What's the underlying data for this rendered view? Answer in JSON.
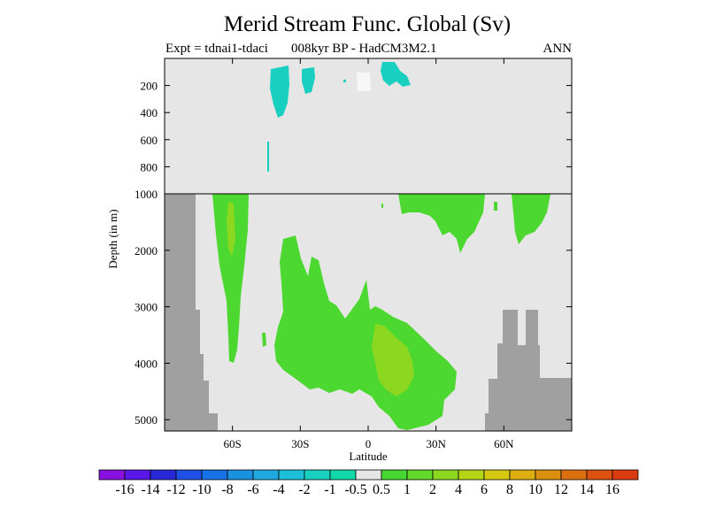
{
  "header": {
    "title": "Merid Stream Func. Global (Sv)",
    "expt": "Expt = tdnai1-tdaci",
    "model": "008kyr BP - HadCM3M2.1",
    "season": "ANN"
  },
  "chart_data": {
    "type": "contour",
    "title": "Merid Stream Func. Global (Sv)",
    "xlabel": "Latitude",
    "ylabel": "Depth (in m)",
    "xlim": [
      -90,
      90
    ],
    "x_ticks": [
      -60,
      -30,
      0,
      30,
      60
    ],
    "x_tick_labels": [
      "60S",
      "30S",
      "0",
      "30N",
      "60N"
    ],
    "ylim_upper_panel": [
      0,
      1000
    ],
    "ylim_lower_panel": [
      1000,
      5200
    ],
    "y_ticks_upper": [
      200,
      400,
      600,
      800,
      1000
    ],
    "y_ticks_lower": [
      2000,
      3000,
      4000,
      5000
    ],
    "y_inverted": true,
    "colorbar": {
      "levels": [
        "-16",
        "-14",
        "-12",
        "-10",
        "-8",
        "-6",
        "-4",
        "-2",
        "-1",
        "-0.5",
        "0.5",
        "1",
        "2",
        "4",
        "6",
        "8",
        "10",
        "12",
        "14",
        "16"
      ],
      "colors": [
        "#8a10e0",
        "#5a18e8",
        "#2828d8",
        "#1e50e6",
        "#1670e6",
        "#1a90e0",
        "#20a8e0",
        "#1cc0d8",
        "#18cfc0",
        "#10d8a8",
        "#e6e6e6",
        "#44d830",
        "#62d828",
        "#8cd820",
        "#b4d418",
        "#d4c810",
        "#dcae10",
        "#dc9010",
        "#dc7010",
        "#dc5010",
        "#dc3a10"
      ]
    },
    "regions": [
      {
        "value": "-1 to -0.5",
        "depth": "upper 0-300 m",
        "lat": "approx 35S-30S"
      },
      {
        "value": "-1 to -0.5",
        "depth": "upper 0-100 m",
        "lat": "approx 5N-10N"
      },
      {
        "value": "0.5 to 1",
        "depth": "1000-3000 m",
        "lat": "approx 70S-60S"
      },
      {
        "value": "0.5 to 1",
        "depth": "3000-4600 m",
        "lat": "approx 40S-0"
      },
      {
        "value": "1 to 2",
        "depth": "3500-4500 m",
        "lat": "approx 0-20N"
      },
      {
        "value": "0.5 to 1",
        "depth": "1000-2000 m",
        "lat": "approx 15N-65N"
      }
    ],
    "land_mask_color": "#a0a0a0",
    "background_color": "#e6e6e6"
  }
}
